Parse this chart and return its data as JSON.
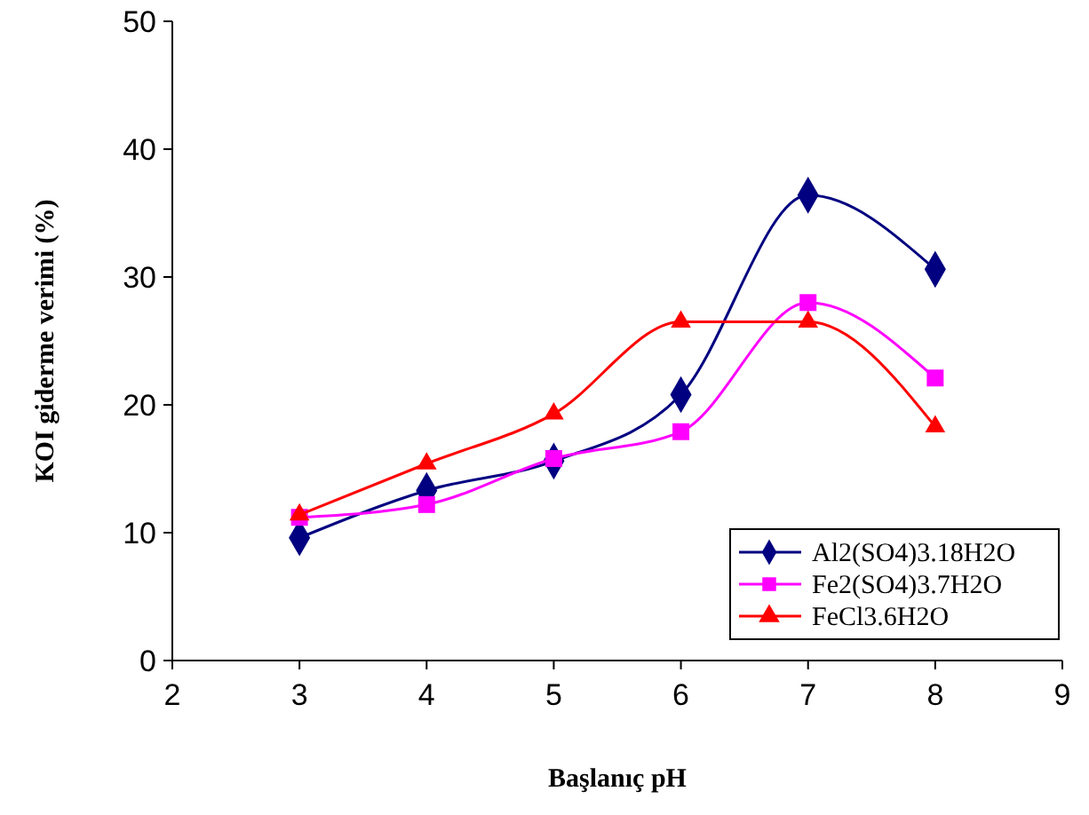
{
  "chart_data": {
    "type": "line",
    "xlabel": "Başlanıç pH",
    "ylabel": "KOI giderme verimi (%)",
    "x": [
      3,
      4,
      5,
      6,
      7,
      8
    ],
    "xlim": [
      2,
      9
    ],
    "xticks": [
      2,
      3,
      4,
      5,
      6,
      7,
      8,
      9
    ],
    "ylim": [
      0,
      50
    ],
    "yticks": [
      0,
      10,
      20,
      30,
      40,
      50
    ],
    "grid": false,
    "legend": "bottom right",
    "series": [
      {
        "name": "Al2(SO4)3.18H2O",
        "color": "#000080",
        "marker": "diamond",
        "values": [
          9.6,
          13.3,
          15.6,
          20.8,
          36.4,
          30.6
        ]
      },
      {
        "name": "Fe2(SO4)3.7H2O",
        "color": "#ff00ff",
        "marker": "square",
        "values": [
          11.2,
          12.2,
          15.8,
          17.9,
          28.0,
          22.1
        ]
      },
      {
        "name": "FeCl3.6H2O",
        "color": "#ff0000",
        "marker": "triangle",
        "values": [
          11.4,
          15.4,
          19.3,
          26.5,
          26.5,
          18.3
        ]
      }
    ]
  }
}
